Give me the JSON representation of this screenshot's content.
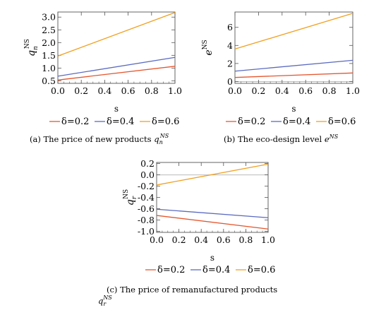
{
  "figure": {
    "colors": {
      "delta_0_2": "#e4572e",
      "delta_0_4": "#5b6bbf",
      "delta_0_6": "#f0a020",
      "frame": "#555555",
      "zero_line": "#bbbbbb"
    }
  },
  "chart_data": [
    {
      "type": "line",
      "xlabel": "s",
      "ylabel": {
        "base": "q",
        "sup": "NS",
        "sub": "n"
      },
      "xlim": [
        0,
        1
      ],
      "ylim": [
        0.4,
        3.2
      ],
      "xticks": [
        "0.0",
        "0.2",
        "0.4",
        "0.6",
        "0.8",
        "1.0"
      ],
      "yticks": [
        "0.5",
        "1.0",
        "1.5",
        "2.0",
        "2.5",
        "3.0"
      ],
      "x": [
        0,
        1
      ],
      "series": [
        {
          "name": "δ=0.2",
          "values": [
            0.53,
            1.07
          ]
        },
        {
          "name": "δ=0.4",
          "values": [
            0.68,
            1.42
          ]
        },
        {
          "name": "δ=0.6",
          "values": [
            1.47,
            3.18
          ]
        }
      ],
      "legend": {
        "position": "bottom",
        "entries": [
          "δ=0.2",
          "δ=0.4",
          "δ=0.6"
        ]
      },
      "caption": {
        "text": "(a)  The price of new products ",
        "math_base": "q",
        "math_sub": "n",
        "math_sup": "NS"
      }
    },
    {
      "type": "line",
      "xlabel": "s",
      "ylabel": {
        "base": "e",
        "sup": "NS",
        "sub": ""
      },
      "xlim": [
        0,
        1
      ],
      "ylim": [
        -0.2,
        7.7
      ],
      "xticks": [
        "0.0",
        "0.2",
        "0.4",
        "0.6",
        "0.8",
        "1.0"
      ],
      "yticks": [
        "0",
        "2",
        "4",
        "6"
      ],
      "x": [
        0,
        1
      ],
      "series": [
        {
          "name": "δ=0.2",
          "values": [
            0.45,
            0.95
          ]
        },
        {
          "name": "δ=0.4",
          "values": [
            1.15,
            2.35
          ]
        },
        {
          "name": "δ=0.6",
          "values": [
            3.6,
            7.55
          ]
        }
      ],
      "legend": {
        "position": "bottom",
        "entries": [
          "δ=0.2",
          "δ=0.4",
          "δ=0.6"
        ]
      },
      "caption": {
        "text": "(b)  The eco-design level ",
        "math_base": "e",
        "math_sub": "",
        "math_sup": "NS"
      }
    },
    {
      "type": "line",
      "xlabel": "s",
      "ylabel": {
        "base": "q",
        "sup": "NS",
        "sub": "r"
      },
      "xlim": [
        0,
        1
      ],
      "ylim": [
        -1.02,
        0.22
      ],
      "xticks": [
        "0.0",
        "0.2",
        "0.4",
        "0.6",
        "0.8",
        "1.0"
      ],
      "yticks": [
        "0.2",
        "0.0",
        "-0.2",
        "-0.4",
        "-0.6",
        "-0.8",
        "-1.0"
      ],
      "x": [
        0,
        1
      ],
      "series": [
        {
          "name": "δ=0.2",
          "values": [
            -0.72,
            -0.96
          ]
        },
        {
          "name": "δ=0.4",
          "values": [
            -0.61,
            -0.76
          ]
        },
        {
          "name": "δ=0.6",
          "values": [
            -0.18,
            0.19
          ]
        }
      ],
      "legend": {
        "position": "bottom",
        "entries": [
          "δ=0.2",
          "δ=0.4",
          "δ=0.6"
        ]
      },
      "caption": {
        "text": "(c)  The price of remanufactured products",
        "math_base": "q",
        "math_sub": "r",
        "math_sup": "NS"
      }
    }
  ]
}
